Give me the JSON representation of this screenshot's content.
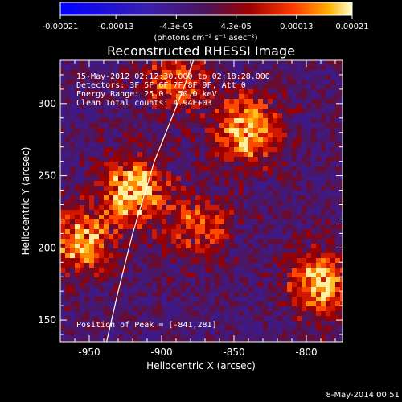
{
  "chart_data": {
    "type": "heatmap",
    "title": "Reconstructed RHESSI Image",
    "xlabel": "Heliocentric X (arcsec)",
    "ylabel": "Heliocentric Y (arcsec)",
    "xlim": [
      -970,
      -775
    ],
    "ylim": [
      135,
      330
    ],
    "xticks": [
      -950,
      -900,
      -850,
      -800
    ],
    "yticks": [
      150,
      200,
      250,
      300
    ],
    "grid": false,
    "colorbar": {
      "ticks": [
        "-0.00021",
        "-0.00013",
        "-4.3e-05",
        "4.3e-05",
        "0.00013",
        "0.00021"
      ],
      "label": "(photons cm⁻² s⁻¹ asec⁻²)",
      "range": [
        -0.00021,
        0.00021
      ]
    },
    "annotations": {
      "time_range": "15-May-2012 02:12:30.000 to 02:18:28.000",
      "detectors": "Detectors: 3F 5F 6F 7F 8F 9F, Att 0",
      "energy_range": "Energy Range: 25.0 - 50.0 keV",
      "method": "Clean     Total counts: 4.94E+03",
      "peak": "Position of Peak = [-841,281]"
    },
    "sources": [
      {
        "x": -920,
        "y": 240,
        "peak": 1.0
      },
      {
        "x": -841,
        "y": 281,
        "peak": 1.0
      },
      {
        "x": -790,
        "y": 175,
        "peak": 0.9
      },
      {
        "x": -955,
        "y": 205,
        "peak": 0.8
      },
      {
        "x": -875,
        "y": 215,
        "peak": 0.6
      },
      {
        "x": -890,
        "y": 315,
        "peak": 0.6
      }
    ],
    "limb_curve": [
      [
        -938,
        135
      ],
      [
        -930,
        170
      ],
      [
        -920,
        210
      ],
      [
        -905,
        260
      ],
      [
        -885,
        310
      ],
      [
        -878,
        330
      ]
    ]
  },
  "footer": {
    "date": "8-May-2014 00:51"
  }
}
